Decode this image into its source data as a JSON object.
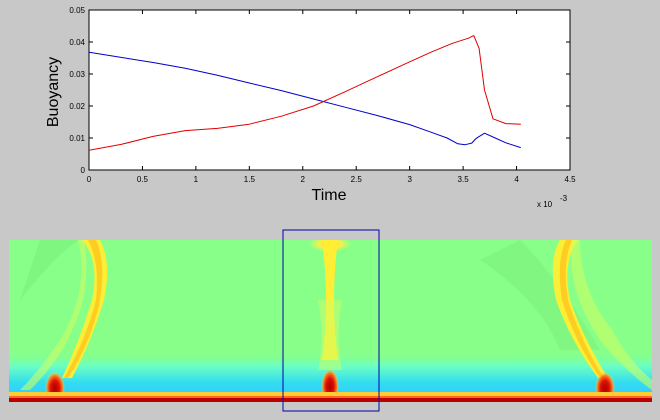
{
  "chart_data": {
    "type": "line",
    "title": "",
    "xlabel": "Time",
    "ylabel": "Buoyancy",
    "x_exponent_label": "x 10",
    "x_exponent": "-3",
    "xlim": [
      0,
      4.5
    ],
    "ylim": [
      0,
      0.05
    ],
    "grid": false,
    "x_ticks": [
      "0",
      "0.5",
      "1",
      "1.5",
      "2",
      "2.5",
      "3",
      "3.5",
      "4",
      "4.5"
    ],
    "y_ticks": [
      "0",
      "0.01",
      "0.02",
      "0.03",
      "0.04",
      "0.05"
    ],
    "series": [
      {
        "color": "#0000cc",
        "x": [
          0,
          0.3,
          0.6,
          0.9,
          1.2,
          1.5,
          1.8,
          2.1,
          2.4,
          2.7,
          3.0,
          3.2,
          3.35,
          3.45,
          3.52,
          3.58,
          3.62,
          3.7,
          3.8,
          3.9,
          4.04
        ],
        "y": [
          0.0368,
          0.0352,
          0.0336,
          0.0318,
          0.0296,
          0.0272,
          0.0248,
          0.0222,
          0.0196,
          0.017,
          0.0142,
          0.0118,
          0.01,
          0.0082,
          0.0079,
          0.0084,
          0.0098,
          0.0115,
          0.01,
          0.0085,
          0.007
        ]
      },
      {
        "color": "#e00000",
        "x": [
          0,
          0.3,
          0.6,
          0.9,
          1.2,
          1.5,
          1.8,
          2.1,
          2.4,
          2.7,
          3.0,
          3.2,
          3.4,
          3.55,
          3.6,
          3.65,
          3.7,
          3.78,
          3.9,
          4.04
        ],
        "y": [
          0.0062,
          0.008,
          0.0105,
          0.0123,
          0.013,
          0.0143,
          0.0168,
          0.02,
          0.0245,
          0.0292,
          0.0338,
          0.0368,
          0.0396,
          0.0412,
          0.042,
          0.038,
          0.025,
          0.016,
          0.0145,
          0.0143
        ]
      }
    ]
  },
  "field_panel": {
    "colors": {
      "background": "#88ff88",
      "cyan": "#44eedd",
      "yellow": "#ffee33",
      "orange": "#ff7733",
      "red": "#cc0000",
      "box": "#0000aa"
    }
  }
}
